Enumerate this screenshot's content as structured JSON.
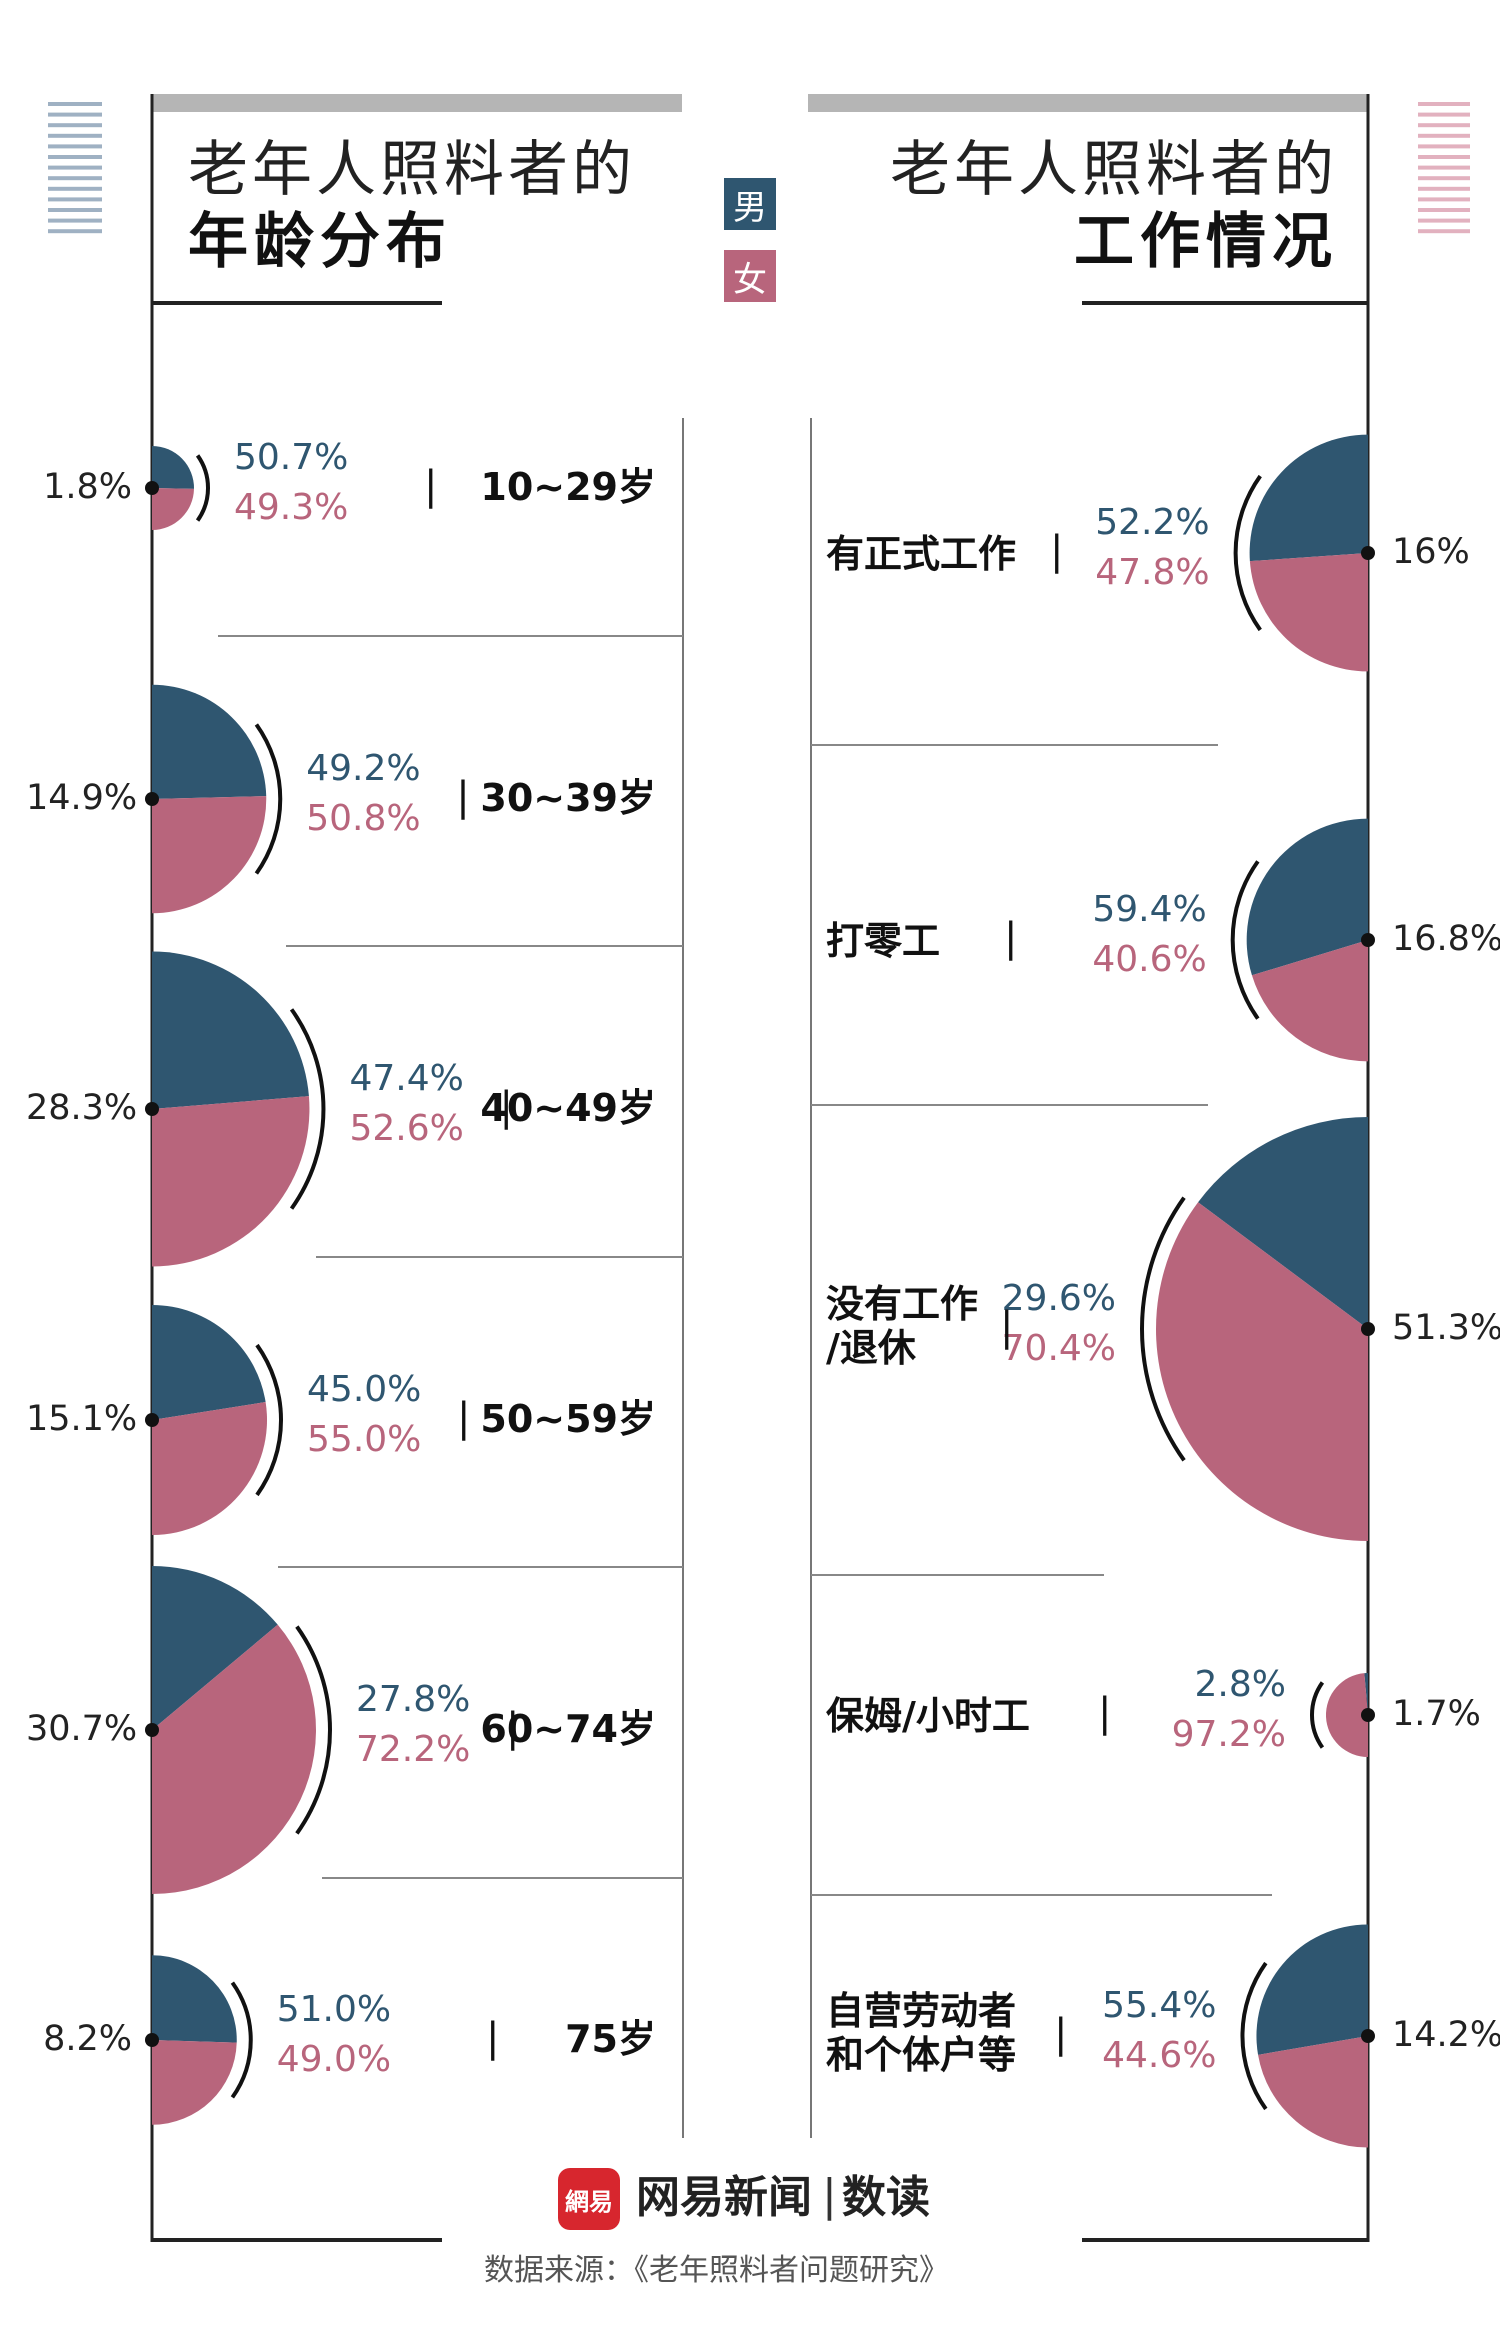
{
  "titles": {
    "left_line1": "老年人照料者的",
    "left_line2": "年龄分布",
    "right_line1": "老年人照料者的",
    "right_line2": "工作情况"
  },
  "legend": {
    "male_label": "男",
    "female_label": "女",
    "male_color": "#2f5670",
    "female_color": "#b8657c"
  },
  "footer": {
    "brand": "网易新闻",
    "brand_sep": "|",
    "brand_sub": "数读",
    "logo_text": "網易",
    "source": "数据来源：《老年照料者问题研究》"
  },
  "chart_data": [
    {
      "type": "pie",
      "name_label": "年龄分布",
      "categories": [
        "10~29岁",
        "30~39岁",
        "40~49岁",
        "50~59岁",
        "60~74岁",
        "75岁"
      ],
      "share_labels": [
        "1.8%",
        "14.9%",
        "28.3%",
        "15.1%",
        "30.7%",
        "8.2%"
      ],
      "share": [
        1.8,
        14.9,
        28.3,
        15.1,
        30.7,
        8.2
      ],
      "male_labels": [
        "50.7%",
        "49.2%",
        "47.4%",
        "45.0%",
        "27.8%",
        "51.0%"
      ],
      "female_labels": [
        "49.3%",
        "50.8%",
        "52.6%",
        "55.0%",
        "72.2%",
        "49.0%"
      ],
      "male": [
        50.7,
        49.2,
        47.4,
        45.0,
        27.8,
        51.0
      ],
      "female": [
        49.3,
        50.8,
        52.6,
        55.0,
        72.2,
        49.0
      ],
      "orientation": "half-pie opening right"
    },
    {
      "type": "pie",
      "name_label": "工作情况",
      "categories": [
        "有正式工作",
        "打零工",
        "没有工作\n/退休",
        "保姆/小时工",
        "自营劳动者\n和个体户等"
      ],
      "share_labels": [
        "16%",
        "16.8%",
        "51.3%",
        "1.7%",
        "14.2%"
      ],
      "share": [
        16,
        16.8,
        51.3,
        1.7,
        14.2
      ],
      "male_labels": [
        "52.2%",
        "59.4%",
        "29.6%",
        "2.8%",
        "55.4%"
      ],
      "female_labels": [
        "47.8%",
        "40.6%",
        "70.4%",
        "97.2%",
        "44.6%"
      ],
      "male": [
        52.2,
        59.4,
        29.6,
        2.8,
        55.4
      ],
      "female": [
        47.8,
        40.6,
        70.4,
        97.2,
        44.6
      ],
      "orientation": "half-pie opening left"
    }
  ]
}
